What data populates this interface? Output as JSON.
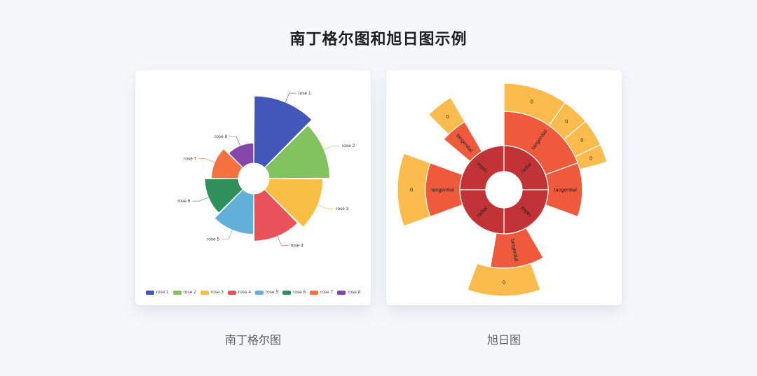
{
  "page": {
    "title": "南丁格尔图和旭日图示例"
  },
  "captions": {
    "rose": "南丁格尔图",
    "sunburst": "旭日图"
  },
  "chart_data": [
    {
      "type": "pie",
      "variant": "nightingale-rose",
      "categories": [
        "rose 1",
        "rose 2",
        "rose 3",
        "rose 4",
        "rose 5",
        "rose 6",
        "rose 7",
        "rose 8"
      ],
      "values": [
        40,
        36,
        32,
        28,
        24,
        20,
        16,
        12
      ],
      "colors": [
        "#4257b8",
        "#83c35f",
        "#f9bf45",
        "#e9525a",
        "#62b0d9",
        "#2f905b",
        "#f67140",
        "#8446a8"
      ],
      "legend_position": "bottom"
    },
    {
      "type": "pie",
      "variant": "sunburst",
      "colors": {
        "inner": "#c23338",
        "middle": "#ef5a3d",
        "outer": "#fcbb4d"
      },
      "rings": [
        {
          "name": "inner",
          "labels": [
            "radial",
            "radial",
            "radial",
            "radial"
          ]
        },
        {
          "name": "middle",
          "labels": [
            "tangential",
            "tangential",
            "tangential",
            "tangential",
            "tangential"
          ]
        },
        {
          "name": "outer",
          "labels": [
            "0",
            "0",
            "0",
            "0",
            "0",
            "0",
            "0",
            "0"
          ]
        }
      ]
    }
  ]
}
